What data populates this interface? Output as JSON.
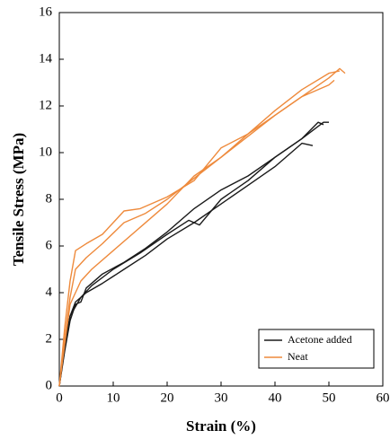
{
  "chart_data": {
    "type": "line",
    "x_label": "Strain (%)",
    "y_label": "Tensile Stress (MPa)",
    "xlim": [
      0,
      60
    ],
    "xticks": [
      0,
      10,
      20,
      30,
      40,
      50,
      60
    ],
    "ylim": [
      0,
      16
    ],
    "yticks": [
      0,
      2,
      4,
      6,
      8,
      10,
      12,
      14,
      16
    ],
    "legend": "lower right",
    "series": [
      {
        "name": "Acetone added",
        "color": "#1a1a1a",
        "lines": [
          {
            "x": [
              0,
              1,
              2,
              3,
              5,
              8,
              12,
              16,
              20,
              25,
              30,
              35,
              40,
              45,
              47
            ],
            "y": [
              0,
              1.8,
              3.0,
              3.6,
              4.0,
              4.4,
              5.0,
              5.6,
              6.3,
              7.0,
              7.8,
              8.6,
              9.4,
              10.4,
              10.3
            ]
          },
          {
            "x": [
              0,
              1,
              2,
              3,
              4,
              5,
              8,
              12,
              16,
              20,
              25,
              30,
              35,
              40,
              45,
              48,
              49
            ],
            "y": [
              0,
              1.5,
              2.8,
              3.5,
              3.6,
              4.2,
              4.8,
              5.3,
              5.9,
              6.6,
              7.6,
              8.4,
              9.0,
              9.8,
              10.6,
              11.3,
              11.2
            ]
          },
          {
            "x": [
              0,
              1,
              2,
              4,
              6,
              10,
              15,
              20,
              24,
              26,
              30,
              35,
              40,
              45,
              49,
              50
            ],
            "y": [
              0,
              1.6,
              3.0,
              3.8,
              4.3,
              5.0,
              5.7,
              6.5,
              7.1,
              6.9,
              8.0,
              8.8,
              9.8,
              10.6,
              11.3,
              11.3
            ]
          }
        ]
      },
      {
        "name": "Neat",
        "color": "#ee8a3c",
        "lines": [
          {
            "x": [
              0,
              1,
              2,
              3,
              5,
              8,
              12,
              15,
              20,
              25,
              30,
              35,
              40,
              45,
              50,
              52,
              53
            ],
            "y": [
              0,
              2.5,
              4.5,
              5.8,
              6.1,
              6.5,
              7.5,
              7.6,
              8.1,
              8.8,
              10.2,
              10.8,
              11.6,
              12.4,
              13.2,
              13.6,
              13.4
            ]
          },
          {
            "x": [
              0,
              1,
              2,
              3,
              5,
              8,
              12,
              16,
              20,
              25,
              30,
              35,
              40,
              45,
              50,
              52
            ],
            "y": [
              0,
              2,
              3.8,
              5,
              5.5,
              6.1,
              7,
              7.4,
              8,
              8.9,
              9.8,
              10.8,
              11.8,
              12.7,
              13.4,
              13.5
            ]
          },
          {
            "x": [
              0,
              1,
              2,
              4,
              6,
              10,
              15,
              20,
              25,
              30,
              35,
              40,
              45,
              50,
              51
            ],
            "y": [
              0,
              1.8,
              3.5,
              4.5,
              5,
              5.8,
              6.8,
              7.8,
              9,
              9.8,
              10.7,
              11.6,
              12.4,
              12.9,
              13.1
            ]
          }
        ]
      }
    ]
  }
}
